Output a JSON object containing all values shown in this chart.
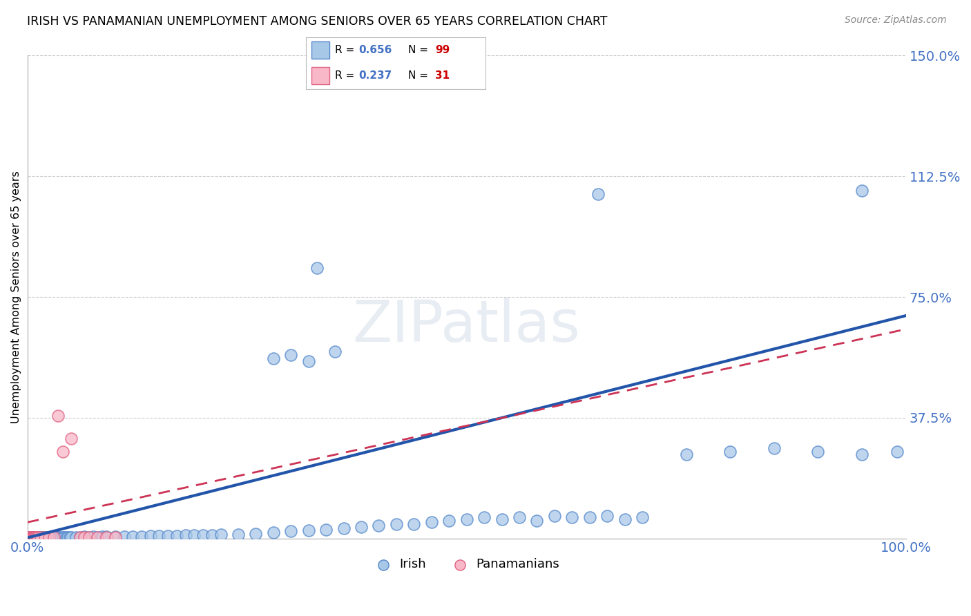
{
  "title": "IRISH VS PANAMANIAN UNEMPLOYMENT AMONG SENIORS OVER 65 YEARS CORRELATION CHART",
  "source": "Source: ZipAtlas.com",
  "ylabel": "Unemployment Among Seniors over 65 years",
  "xlim": [
    0,
    1.0
  ],
  "ylim": [
    0,
    1.5
  ],
  "ytick_positions": [
    0.375,
    0.75,
    1.125,
    1.5
  ],
  "ytick_labels": [
    "37.5%",
    "75.0%",
    "112.5%",
    "150.0%"
  ],
  "irish_color": "#a8c8e8",
  "irish_edge_color": "#5588cc",
  "pana_color": "#f8b8c8",
  "pana_edge_color": "#e06080",
  "trend_irish_color": "#2255aa",
  "trend_pana_color": "#cc3355",
  "background_color": "#ffffff",
  "grid_color": "#cccccc",
  "legend_R1": "0.656",
  "legend_N1": "99",
  "legend_R2": "0.237",
  "legend_N2": "31",
  "irish_x": [
    0.001,
    0.002,
    0.003,
    0.004,
    0.005,
    0.006,
    0.007,
    0.008,
    0.009,
    0.01,
    0.011,
    0.012,
    0.013,
    0.014,
    0.015,
    0.016,
    0.017,
    0.018,
    0.019,
    0.02,
    0.021,
    0.022,
    0.023,
    0.024,
    0.025,
    0.026,
    0.027,
    0.028,
    0.029,
    0.03,
    0.032,
    0.034,
    0.035,
    0.036,
    0.038,
    0.04,
    0.042,
    0.044,
    0.046,
    0.048,
    0.05,
    0.055,
    0.06,
    0.065,
    0.07,
    0.075,
    0.08,
    0.085,
    0.09,
    0.1,
    0.11,
    0.12,
    0.13,
    0.14,
    0.15,
    0.16,
    0.17,
    0.18,
    0.19,
    0.2,
    0.21,
    0.22,
    0.24,
    0.26,
    0.28,
    0.3,
    0.32,
    0.34,
    0.36,
    0.38,
    0.4,
    0.42,
    0.44,
    0.46,
    0.48,
    0.5,
    0.52,
    0.54,
    0.56,
    0.58,
    0.6,
    0.62,
    0.64,
    0.66,
    0.68,
    0.7,
    0.75,
    0.8,
    0.85,
    0.9,
    0.95,
    0.99,
    0.28,
    0.3,
    0.32,
    0.33,
    0.35,
    0.65,
    0.95
  ],
  "irish_y": [
    0.003,
    0.003,
    0.004,
    0.003,
    0.003,
    0.004,
    0.003,
    0.003,
    0.004,
    0.003,
    0.003,
    0.004,
    0.003,
    0.004,
    0.003,
    0.004,
    0.003,
    0.003,
    0.004,
    0.003,
    0.003,
    0.004,
    0.003,
    0.003,
    0.004,
    0.003,
    0.004,
    0.003,
    0.004,
    0.003,
    0.004,
    0.003,
    0.003,
    0.004,
    0.003,
    0.004,
    0.003,
    0.004,
    0.003,
    0.004,
    0.004,
    0.004,
    0.004,
    0.005,
    0.004,
    0.005,
    0.004,
    0.005,
    0.005,
    0.005,
    0.005,
    0.006,
    0.006,
    0.007,
    0.007,
    0.008,
    0.008,
    0.009,
    0.009,
    0.01,
    0.01,
    0.011,
    0.013,
    0.015,
    0.018,
    0.022,
    0.025,
    0.028,
    0.032,
    0.035,
    0.04,
    0.045,
    0.045,
    0.05,
    0.055,
    0.06,
    0.065,
    0.06,
    0.065,
    0.055,
    0.07,
    0.065,
    0.065,
    0.07,
    0.06,
    0.065,
    0.26,
    0.27,
    0.28,
    0.27,
    0.26,
    0.27,
    0.56,
    0.57,
    0.55,
    0.84,
    0.58,
    1.07,
    1.08
  ],
  "pana_x": [
    0.001,
    0.002,
    0.003,
    0.003,
    0.004,
    0.004,
    0.005,
    0.005,
    0.006,
    0.006,
    0.007,
    0.007,
    0.008,
    0.008,
    0.009,
    0.01,
    0.011,
    0.012,
    0.015,
    0.02,
    0.025,
    0.03,
    0.035,
    0.04,
    0.05,
    0.06,
    0.065,
    0.07,
    0.08,
    0.09,
    0.1
  ],
  "pana_y": [
    0.003,
    0.003,
    0.003,
    0.004,
    0.003,
    0.004,
    0.003,
    0.004,
    0.003,
    0.004,
    0.003,
    0.004,
    0.003,
    0.004,
    0.003,
    0.003,
    0.004,
    0.003,
    0.003,
    0.003,
    0.003,
    0.004,
    0.38,
    0.27,
    0.31,
    0.003,
    0.004,
    0.003,
    0.004,
    0.003,
    0.004
  ]
}
